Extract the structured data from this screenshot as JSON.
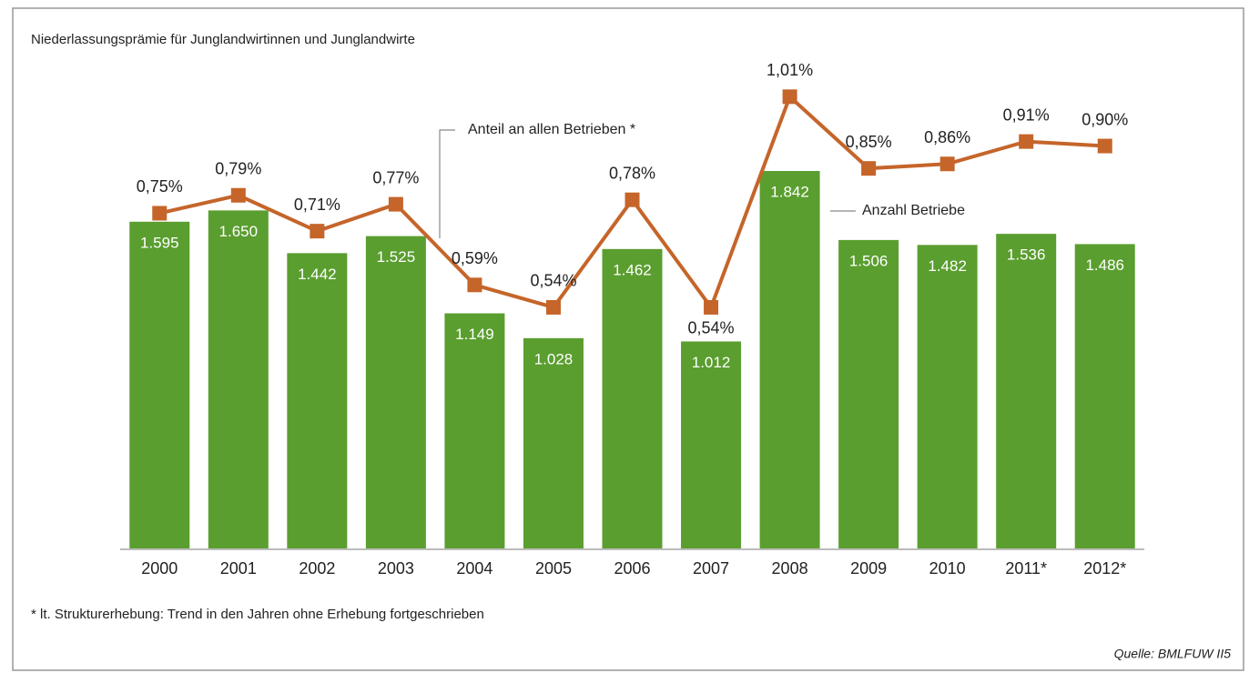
{
  "chart_data": {
    "type": "bar-line",
    "title": "Niederlassungsprämie für Junglandwirtinnen und Junglandwirte",
    "categories": [
      "2000",
      "2001",
      "2002",
      "2003",
      "2004",
      "2005",
      "2006",
      "2007",
      "2008",
      "2009",
      "2010",
      "2011*",
      "2012*"
    ],
    "series": [
      {
        "name": "Anzahl Betriebe",
        "type": "bar",
        "color": "#5a9e2f",
        "values": [
          1595,
          1650,
          1442,
          1525,
          1149,
          1028,
          1462,
          1012,
          1842,
          1506,
          1482,
          1536,
          1486
        ],
        "value_labels": [
          "1.595",
          "1.650",
          "1.442",
          "1.525",
          "1.149",
          "1.028",
          "1.462",
          "1.012",
          "1.842",
          "1.506",
          "1.482",
          "1.536",
          "1.486"
        ]
      },
      {
        "name": "Anteil an allen Betrieben *",
        "type": "line",
        "axis": "y2",
        "color": "#c5652a",
        "values": [
          0.75,
          0.79,
          0.71,
          0.77,
          0.59,
          0.54,
          0.78,
          0.54,
          1.01,
          0.85,
          0.86,
          0.91,
          0.9
        ],
        "value_labels": [
          "0,75%",
          "0,79%",
          "0,71%",
          "0,77%",
          "0,59%",
          "0,54%",
          "0,78%",
          "0,54%",
          "1,01%",
          "0,85%",
          "0,86%",
          "0,91%",
          "0,90%"
        ]
      }
    ],
    "ylim": [
      0,
      2400
    ],
    "y2lim": [
      0,
      1.1
    ],
    "footnote": "* lt. Strukturerhebung: Trend in den Jahren ohne Erhebung fortgeschrieben",
    "source": "Quelle: BMLFUW II5"
  }
}
